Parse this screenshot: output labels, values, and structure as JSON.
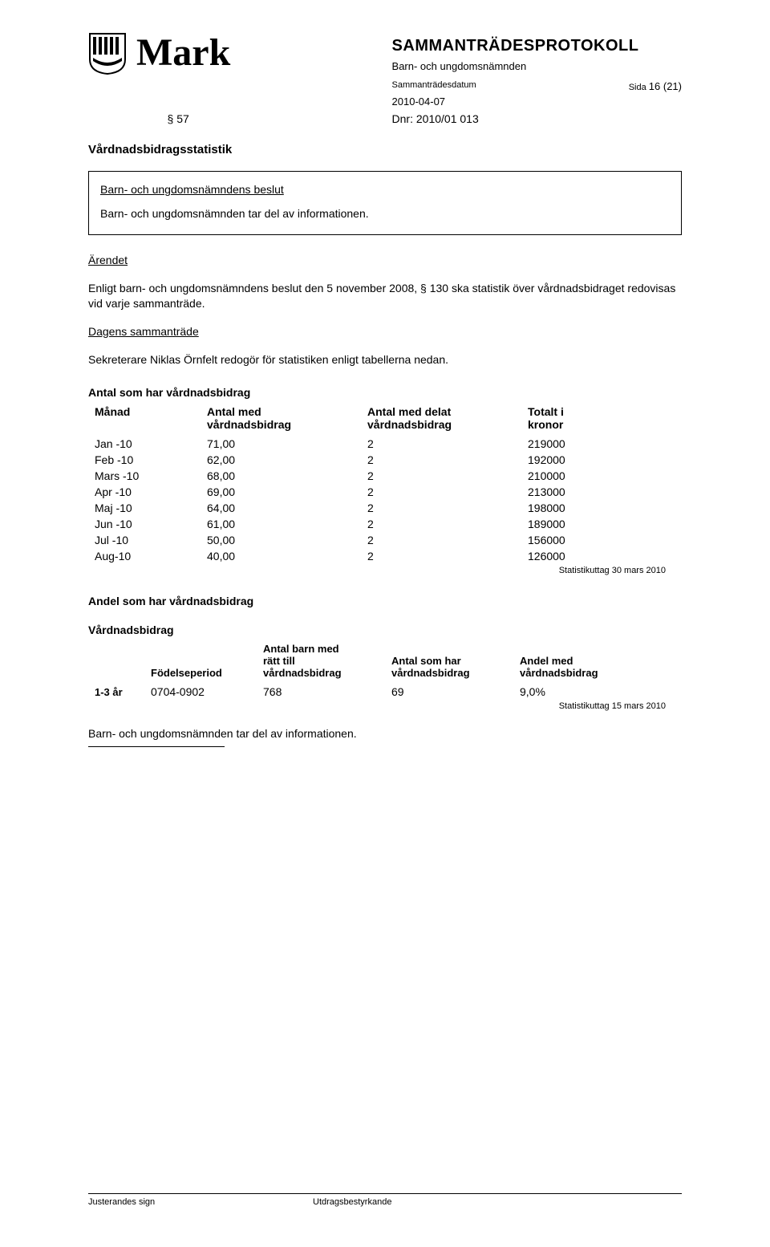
{
  "brand": "Mark",
  "header": {
    "title": "SAMMANTRÄDESPROTOKOLL",
    "subtitle": "Barn- och ungdomsnämnden",
    "meta_label": "Sammanträdesdatum",
    "page_label": "Sida",
    "page_value": "16 (21)",
    "date": "2010-04-07"
  },
  "section": {
    "num": "§ 57",
    "dnr": "Dnr: 2010/01 013"
  },
  "title": "Vårdnadsbidragsstatistik",
  "box": {
    "heading": "Barn- och ungdomsnämndens beslut",
    "text": "Barn- och ungdomsnämnden tar del av informationen."
  },
  "arende": {
    "heading": "Ärendet",
    "text": "Enligt barn- och ungdomsnämndens beslut den 5 november 2008, § 130 ska statistik över vårdnadsbidraget redovisas vid varje sammanträde."
  },
  "dagens": {
    "heading": "Dagens sammanträde",
    "text": "Sekreterare Niklas Örnfelt redogör för statistiken enligt tabellerna nedan."
  },
  "table1": {
    "title": "Antal som har vårdnadsbidrag",
    "headers": {
      "c1": "Månad",
      "c2a": "Antal med",
      "c2b": "vårdnadsbidrag",
      "c3a": "Antal med delat",
      "c3b": "vårdnadsbidrag",
      "c4a": "Totalt i",
      "c4b": "kronor"
    },
    "rows": [
      {
        "m": "Jan -10",
        "a": "71,00",
        "d": "2",
        "t": "219000"
      },
      {
        "m": "Feb -10",
        "a": "62,00",
        "d": "2",
        "t": "192000"
      },
      {
        "m": "Mars -10",
        "a": "68,00",
        "d": "2",
        "t": "210000"
      },
      {
        "m": "Apr -10",
        "a": "69,00",
        "d": "2",
        "t": "213000"
      },
      {
        "m": "Maj -10",
        "a": "64,00",
        "d": "2",
        "t": "198000"
      },
      {
        "m": "Jun -10",
        "a": "61,00",
        "d": "2",
        "t": "189000"
      },
      {
        "m": "Jul -10",
        "a": "50,00",
        "d": "2",
        "t": "156000"
      },
      {
        "m": "Aug-10",
        "a": "40,00",
        "d": "2",
        "t": "126000"
      }
    ],
    "note": "Statistikuttag 30 mars 2010"
  },
  "table2": {
    "title": "Andel som har vårdnadsbidrag",
    "subtitle": "Vårdnadsbidrag",
    "headers": {
      "c1": "Födelseperiod",
      "c2a": "Antal barn med",
      "c2b": "rätt till",
      "c2c": "vårdnadsbidrag",
      "c3a": "Antal som har",
      "c3b": "vårdnadsbidrag",
      "c4a": "Andel med",
      "c4b": "vårdnadsbidrag"
    },
    "row": {
      "age": "1-3 år",
      "period": "0704-0902",
      "antal": "768",
      "har": "69",
      "andel": "9,0%"
    },
    "note": "Statistikuttag 15 mars 2010"
  },
  "closing": "Barn- och ungdomsnämnden tar del av informationen.",
  "footer": {
    "left": "Justerandes sign",
    "right": "Utdragsbestyrkande"
  },
  "colors": {
    "text": "#000000",
    "bg": "#ffffff",
    "border": "#000000"
  }
}
